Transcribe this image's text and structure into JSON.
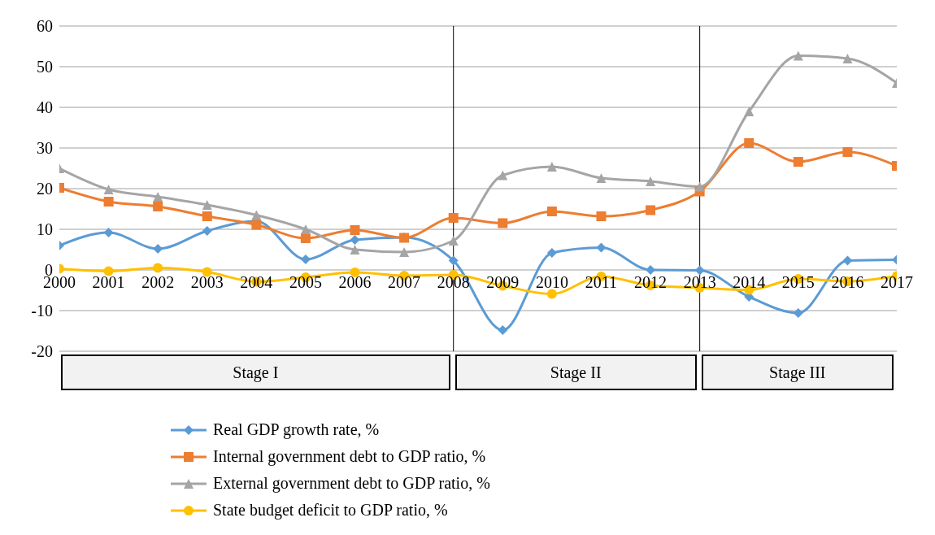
{
  "chart_data": {
    "type": "line",
    "categories": [
      "2000",
      "2001",
      "2002",
      "2003",
      "2004",
      "2005",
      "2006",
      "2007",
      "2008",
      "2009",
      "2010",
      "2011",
      "2012",
      "2013",
      "2014",
      "2015",
      "2016",
      "2017"
    ],
    "ylim": [
      -20,
      60
    ],
    "yticks": [
      -20,
      -10,
      0,
      10,
      20,
      30,
      40,
      50,
      60
    ],
    "grid": "y",
    "legend": "bottom",
    "series": [
      {
        "name": "Real GDP growth rate, %",
        "color": "#5b9bd5",
        "marker": "diamond",
        "values": [
          6,
          9.2,
          5.2,
          9.6,
          12,
          2.6,
          7.4,
          8,
          2.3,
          -14.8,
          4.2,
          5.5,
          0,
          -0.1,
          -6.6,
          -10.6,
          2.3,
          2.5
        ]
      },
      {
        "name": "Internal government debt to GDP ratio, %",
        "color": "#ed7d31",
        "marker": "square",
        "values": [
          20.2,
          16.8,
          15.6,
          13.2,
          11.1,
          7.8,
          9.8,
          7.9,
          12.8,
          11.5,
          14.4,
          13.2,
          14.7,
          19.3,
          31.2,
          26.6,
          29,
          25.6
        ]
      },
      {
        "name": "External government debt to GDP ratio, %",
        "color": "#a5a5a5",
        "marker": "triangle",
        "values": [
          25,
          19.8,
          18,
          16,
          13.5,
          10,
          5,
          4.4,
          7.2,
          23.3,
          25.4,
          22.6,
          21.8,
          20.5,
          39,
          52.7,
          52,
          46
        ]
      },
      {
        "name": "State budget deficit to GDP ratio, %",
        "color": "#ffc000",
        "marker": "circle",
        "values": [
          0.3,
          -0.3,
          0.5,
          -0.5,
          -2.9,
          -1.8,
          -0.6,
          -1.4,
          -1.2,
          -3.9,
          -5.9,
          -1.6,
          -3.8,
          -4.4,
          -4.9,
          -2.2,
          -2.8,
          -1.5
        ]
      }
    ],
    "ref_lines": [
      {
        "axis": "x",
        "value": "2008",
        "color": "#000000"
      },
      {
        "axis": "x",
        "value": "2013",
        "color": "#000000"
      }
    ],
    "annotations": [
      "Stage I",
      "Stage II",
      "Stage III"
    ]
  }
}
